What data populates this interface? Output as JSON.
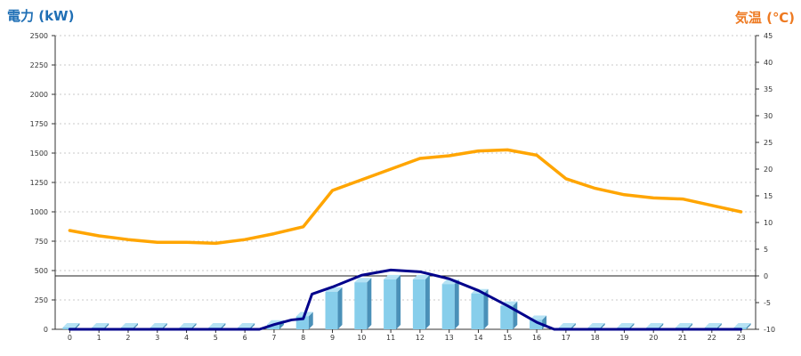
{
  "chart_data": {
    "type": "bar",
    "left_axis_title": "電力 (kW)",
    "right_axis_title": "気温 (℃)",
    "categories": [
      "0",
      "1",
      "2",
      "3",
      "4",
      "5",
      "6",
      "7",
      "8",
      "9",
      "10",
      "11",
      "12",
      "13",
      "14",
      "15",
      "16",
      "17",
      "18",
      "19",
      "20",
      "21",
      "22",
      "23"
    ],
    "y_left": {
      "min": 0,
      "max": 2500,
      "ticks": [
        "0",
        "250",
        "500",
        "750",
        "1000",
        "1250",
        "1500",
        "1750",
        "2000",
        "2250",
        "2500"
      ]
    },
    "y_right": {
      "min": -10,
      "max": 45,
      "ticks": [
        "-10",
        "-5",
        "0",
        "5",
        "10",
        "15",
        "20",
        "25",
        "30",
        "35",
        "40",
        "45"
      ]
    },
    "reference_line_left_value": 455,
    "grid": true,
    "bars": {
      "axis": "left",
      "color": "#87ceeb",
      "values": [
        15,
        15,
        15,
        15,
        15,
        15,
        15,
        40,
        110,
        320,
        400,
        425,
        425,
        385,
        305,
        200,
        80,
        15,
        15,
        15,
        15,
        15,
        15,
        15
      ]
    },
    "power_line": {
      "axis": "left",
      "color": "#00008b",
      "points": [
        [
          0,
          0
        ],
        [
          1,
          0
        ],
        [
          2,
          0
        ],
        [
          3,
          0
        ],
        [
          4,
          0
        ],
        [
          5,
          0
        ],
        [
          6,
          0
        ],
        [
          6.5,
          0
        ],
        [
          7,
          40
        ],
        [
          7.6,
          80
        ],
        [
          8,
          90
        ],
        [
          8.3,
          300
        ],
        [
          9,
          360
        ],
        [
          10,
          460
        ],
        [
          11,
          505
        ],
        [
          12,
          490
        ],
        [
          13,
          430
        ],
        [
          14,
          330
        ],
        [
          15,
          200
        ],
        [
          15.5,
          130
        ],
        [
          16,
          60
        ],
        [
          16.6,
          0
        ],
        [
          17,
          0
        ],
        [
          18,
          0
        ],
        [
          19,
          0
        ],
        [
          20,
          0
        ],
        [
          21,
          0
        ],
        [
          22,
          0
        ],
        [
          23,
          0
        ]
      ]
    },
    "temperature_line": {
      "axis": "right",
      "color": "#ffa500",
      "values": [
        8.5,
        7.5,
        6.8,
        6.3,
        6.3,
        6.1,
        6.8,
        7.9,
        9.2,
        16,
        18,
        20,
        22,
        22.5,
        23.4,
        23.6,
        22.6,
        18.2,
        16.4,
        15.2,
        14.6,
        14.4,
        13.2,
        12
      ]
    }
  }
}
